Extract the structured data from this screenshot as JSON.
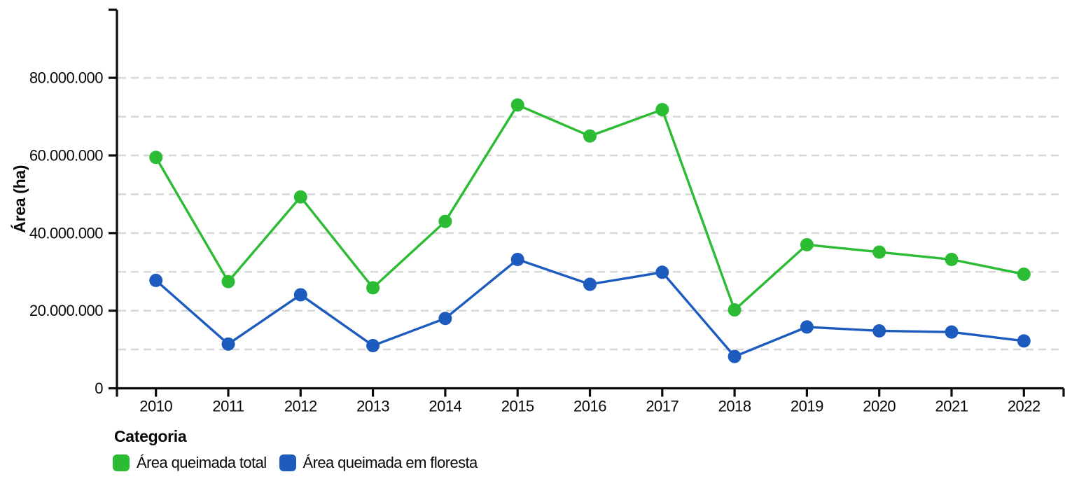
{
  "chart": {
    "y_axis_title": "Área (ha)",
    "legend": {
      "title": "Categoria"
    }
  },
  "chart_data": {
    "type": "line",
    "title": "",
    "xlabel": "",
    "ylabel": "Área (ha)",
    "x": [
      2010,
      2011,
      2012,
      2013,
      2014,
      2015,
      2016,
      2017,
      2018,
      2019,
      2020,
      2021,
      2022
    ],
    "series": [
      {
        "name": "Área queimada total",
        "color": "#2bbc33",
        "values": [
          59500000,
          27500000,
          49300000,
          25900000,
          43000000,
          73000000,
          65000000,
          71800000,
          20200000,
          37000000,
          35100000,
          33200000,
          29400000
        ]
      },
      {
        "name": "Área queimada em floresta",
        "color": "#1d5cbe",
        "values": [
          27800000,
          11400000,
          24100000,
          11000000,
          18000000,
          33200000,
          26800000,
          29900000,
          8200000,
          15800000,
          14800000,
          14500000,
          12200000
        ]
      }
    ],
    "ylim": [
      0,
      97500000
    ],
    "y_major_ticks": [
      0,
      20000000,
      40000000,
      60000000,
      80000000
    ],
    "y_gridline_step": 10000000,
    "y_gridline_max": 80000000,
    "grid": "horizontal-dashed",
    "grid_color": "#d8d8d8",
    "axis_color": "#0a0a0a",
    "marker": "circle",
    "legend_position": "bottom-left",
    "legend_title": "Categoria",
    "number_format": "thousands-dot"
  }
}
